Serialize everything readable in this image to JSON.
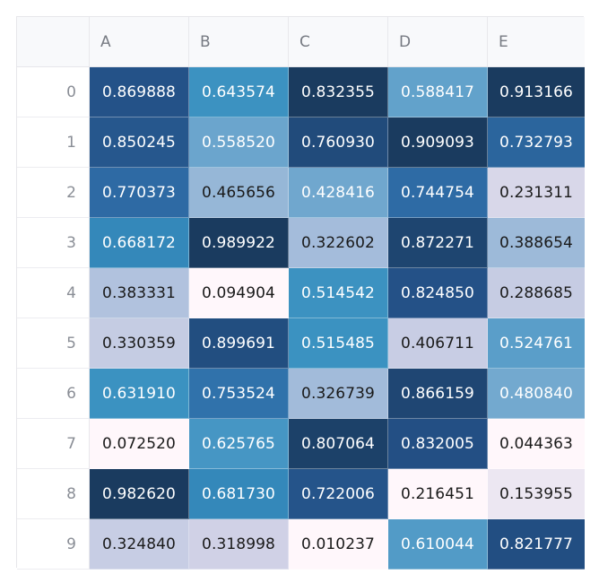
{
  "table": {
    "columns": [
      "A",
      "B",
      "C",
      "D",
      "E"
    ],
    "rows": [
      {
        "index": "0",
        "values": [
          "0.869888",
          "0.643574",
          "0.832355",
          "0.588417",
          "0.913166"
        ]
      },
      {
        "index": "1",
        "values": [
          "0.850245",
          "0.558520",
          "0.760930",
          "0.909093",
          "0.732793"
        ]
      },
      {
        "index": "2",
        "values": [
          "0.770373",
          "0.465656",
          "0.428416",
          "0.744754",
          "0.231311"
        ]
      },
      {
        "index": "3",
        "values": [
          "0.668172",
          "0.989922",
          "0.322602",
          "0.872271",
          "0.388654"
        ]
      },
      {
        "index": "4",
        "values": [
          "0.383331",
          "0.094904",
          "0.514542",
          "0.824850",
          "0.288685"
        ]
      },
      {
        "index": "5",
        "values": [
          "0.330359",
          "0.899691",
          "0.515485",
          "0.406711",
          "0.524761"
        ]
      },
      {
        "index": "6",
        "values": [
          "0.631910",
          "0.753524",
          "0.326739",
          "0.866159",
          "0.480840"
        ]
      },
      {
        "index": "7",
        "values": [
          "0.072520",
          "0.625765",
          "0.807064",
          "0.832005",
          "0.044363"
        ]
      },
      {
        "index": "8",
        "values": [
          "0.982620",
          "0.681730",
          "0.722006",
          "0.216451",
          "0.153955"
        ]
      },
      {
        "index": "9",
        "values": [
          "0.324840",
          "0.318998",
          "0.010237",
          "0.610044",
          "0.821777"
        ]
      }
    ],
    "colormap": [
      "#fff7fb",
      "#ece7f2",
      "#d0d1e6",
      "#a6bddb",
      "#74a9cf",
      "#3690c0",
      "#2f6ea8",
      "#245288",
      "#1a3b5f"
    ]
  }
}
